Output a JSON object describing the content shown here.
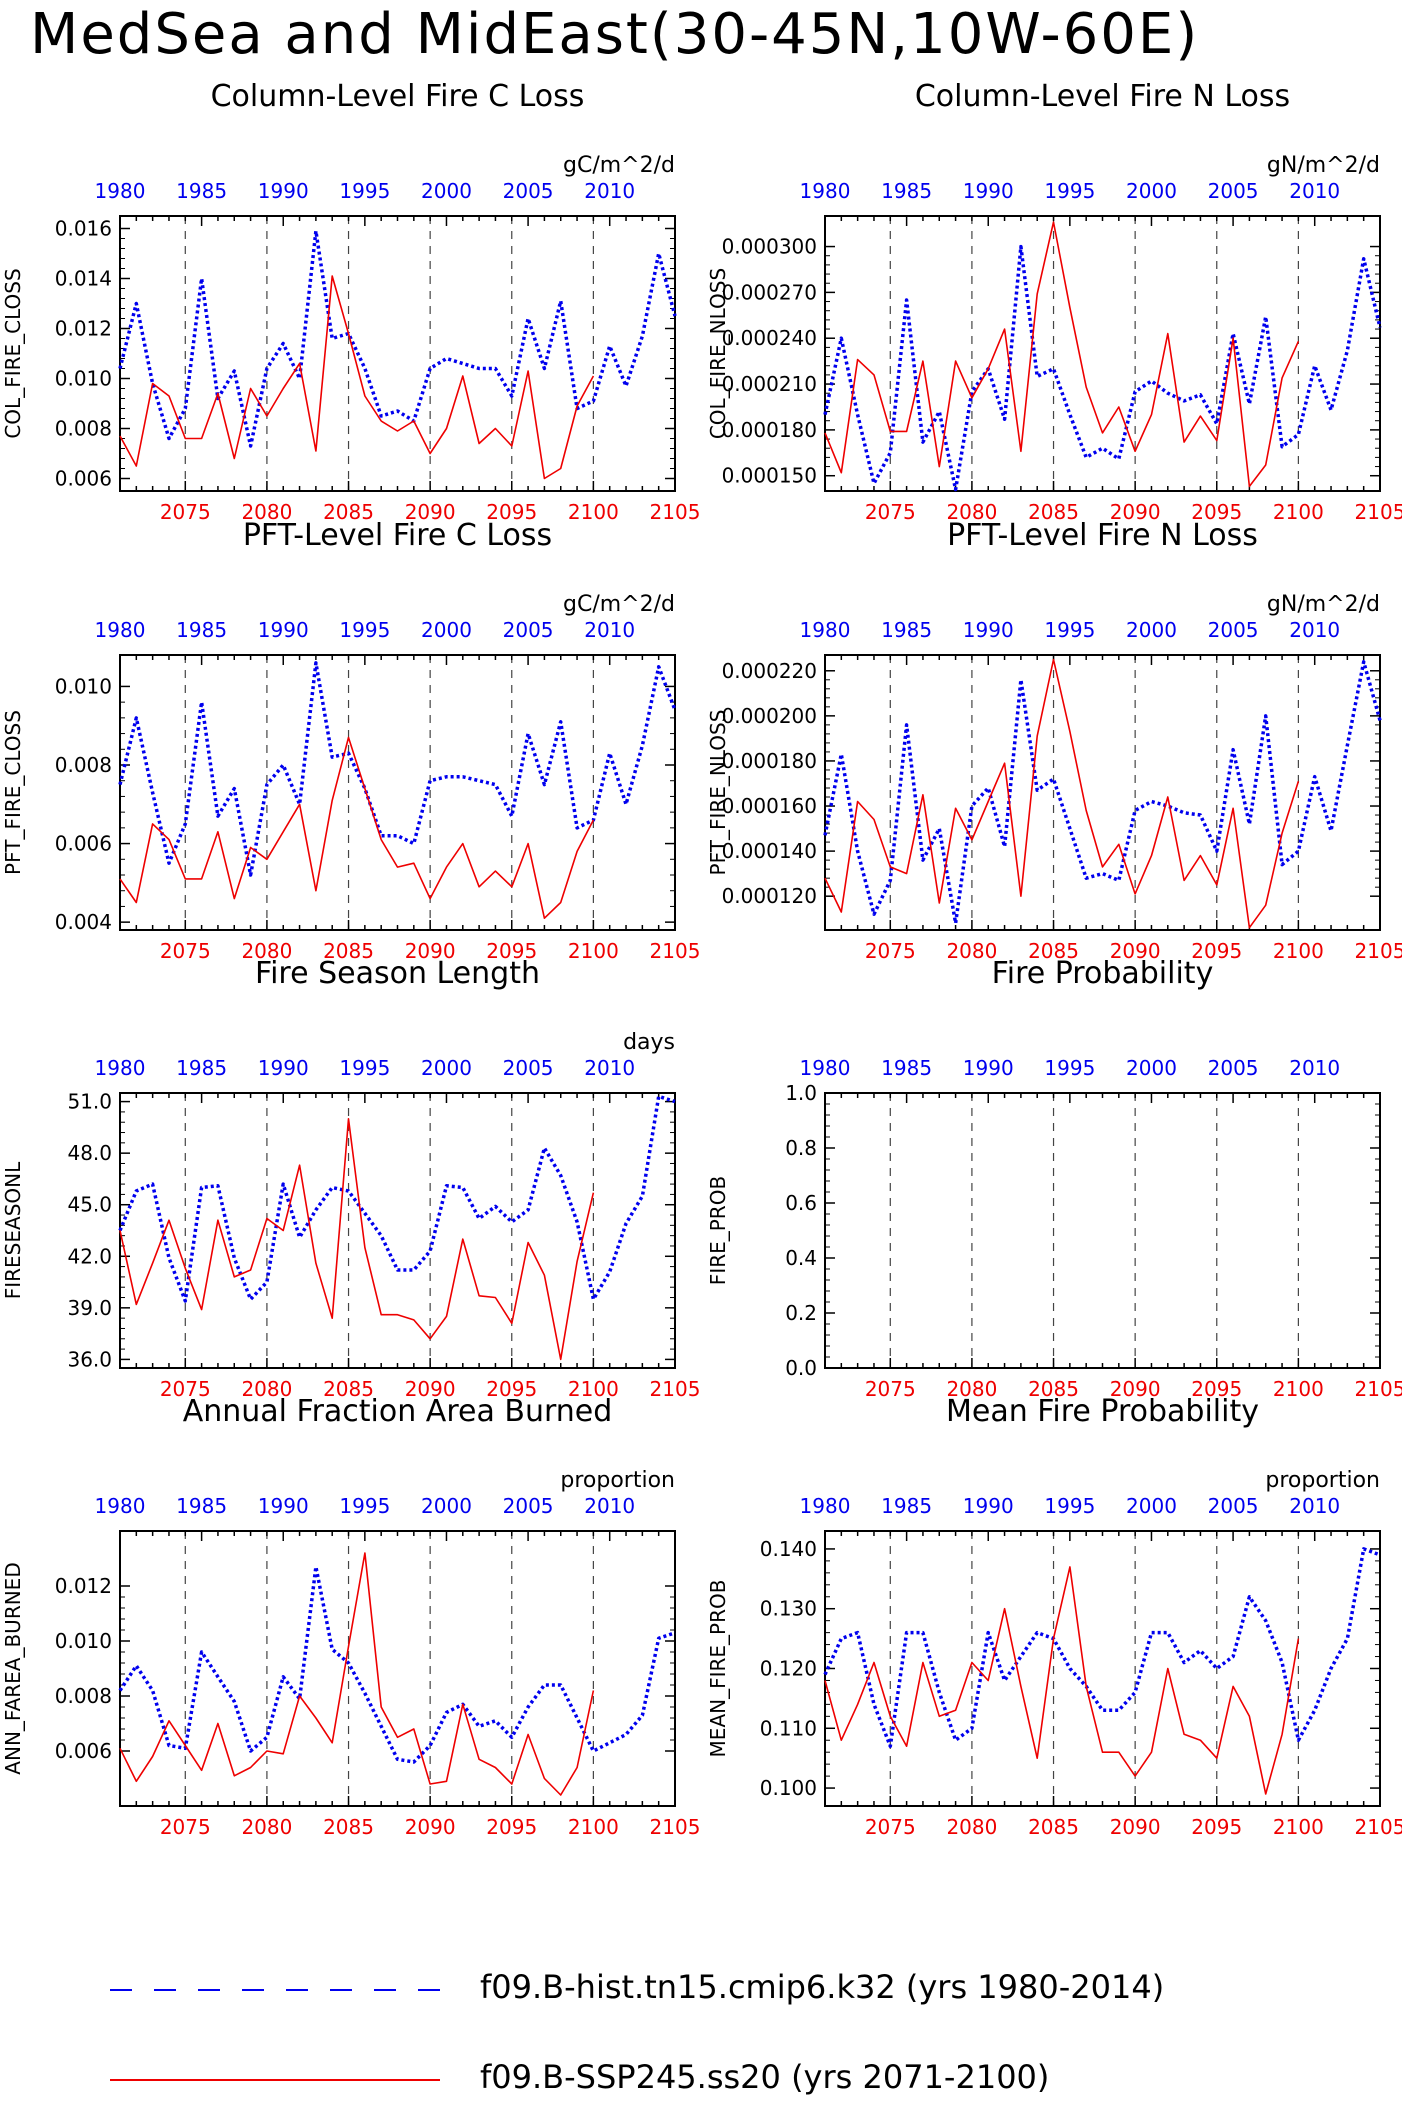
{
  "title": "MedSea and MidEast(30-45N,10W-60E)",
  "colors": {
    "hist": "#0000ee",
    "ssp": "#ee0000",
    "axis": "#000000"
  },
  "top_axis_ticks": [
    "1980",
    "1985",
    "1990",
    "1995",
    "2000",
    "2005",
    "2010"
  ],
  "bottom_axis_ticks": [
    "2075",
    "2080",
    "2085",
    "2090",
    "2095",
    "2100",
    "2105"
  ],
  "legend": {
    "hist": "f09.B-hist.tn15.cmip6.k32 (yrs 1980-2014)",
    "ssp": "f09.B-SSP245.ss20 (yrs 2071-2100)"
  },
  "chart_data": [
    {
      "type": "line",
      "title": "Column-Level Fire C Loss",
      "units": "gC/m^2/d",
      "ylabel": "COL_FIRE_CLOSS",
      "ylim": [
        0.0055,
        0.0165
      ],
      "yticks": [
        "0.006",
        "0.008",
        "0.010",
        "0.012",
        "0.014",
        "0.016"
      ],
      "series": [
        {
          "name": "f09.B-hist.tn15.cmip6.k32 (yrs 1980-2014)",
          "x_start": 1980,
          "values": [
            0.0104,
            0.013,
            0.0098,
            0.0076,
            0.0088,
            0.014,
            0.0092,
            0.0103,
            0.0073,
            0.0104,
            0.0114,
            0.01,
            0.0159,
            0.0116,
            0.0118,
            0.0104,
            0.0085,
            0.0087,
            0.0083,
            0.0104,
            0.0108,
            0.0106,
            0.0104,
            0.0104,
            0.0093,
            0.0124,
            0.0104,
            0.0131,
            0.0088,
            0.0091,
            0.0113,
            0.0097,
            0.0117,
            0.015,
            0.0125
          ]
        },
        {
          "name": "f09.B-SSP245.ss20 (yrs 2071-2100)",
          "x_start": 2071,
          "values": [
            0.0077,
            0.0065,
            0.0098,
            0.0093,
            0.0076,
            0.0076,
            0.0094,
            0.0068,
            0.0096,
            0.0085,
            0.0096,
            0.0106,
            0.0071,
            0.0141,
            0.0118,
            0.0093,
            0.0083,
            0.0079,
            0.0083,
            0.007,
            0.008,
            0.0101,
            0.0074,
            0.008,
            0.0073,
            0.0103,
            0.006,
            0.0064,
            0.0089,
            0.0101
          ]
        }
      ]
    },
    {
      "type": "line",
      "title": "Column-Level Fire N Loss",
      "units": "gN/m^2/d",
      "ylabel": "COL_FIRE_NLOSS",
      "ylim": [
        0.00014,
        0.00032
      ],
      "yticks": [
        "0.000150",
        "0.000180",
        "0.000210",
        "0.000240",
        "0.000270",
        "0.000300"
      ],
      "series": [
        {
          "name": "f09.B-hist.tn15.cmip6.k32 (yrs 1980-2014)",
          "x_start": 1980,
          "values": [
            0.00019,
            0.00024,
            0.00019,
            0.000145,
            0.000165,
            0.000265,
            0.000172,
            0.000192,
            0.000141,
            0.000205,
            0.00022,
            0.000187,
            0.0003,
            0.000215,
            0.00022,
            0.00019,
            0.000162,
            0.000168,
            0.000161,
            0.000205,
            0.000212,
            0.000204,
            0.000199,
            0.000203,
            0.000184,
            0.000243,
            0.000197,
            0.000254,
            0.000169,
            0.000177,
            0.000222,
            0.000193,
            0.000232,
            0.000292,
            0.000247
          ]
        },
        {
          "name": "f09.B-SSP245.ss20 (yrs 2071-2100)",
          "x_start": 2071,
          "values": [
            0.000178,
            0.000152,
            0.000226,
            0.000216,
            0.000179,
            0.000179,
            0.000225,
            0.000156,
            0.000225,
            0.000201,
            0.00022,
            0.000246,
            0.000166,
            0.000269,
            0.000316,
            0.00026,
            0.000208,
            0.000178,
            0.000195,
            0.000166,
            0.00019,
            0.000243,
            0.000172,
            0.000189,
            0.000173,
            0.00024,
            0.000143,
            0.000157,
            0.000214,
            0.000238
          ]
        }
      ]
    },
    {
      "type": "line",
      "title": "PFT-Level Fire C Loss",
      "units": "gC/m^2/d",
      "ylabel": "PFT_FIRE_CLOSS",
      "ylim": [
        0.0038,
        0.0108
      ],
      "yticks": [
        "0.004",
        "0.006",
        "0.008",
        "0.010"
      ],
      "series": [
        {
          "name": "f09.B-hist.tn15.cmip6.k32 (yrs 1980-2014)",
          "x_start": 1980,
          "values": [
            0.0075,
            0.0092,
            0.0073,
            0.0055,
            0.0065,
            0.0096,
            0.0067,
            0.0074,
            0.0052,
            0.0075,
            0.008,
            0.007,
            0.0106,
            0.0082,
            0.0083,
            0.0074,
            0.0062,
            0.0062,
            0.006,
            0.0076,
            0.0077,
            0.0077,
            0.0076,
            0.0075,
            0.0067,
            0.0088,
            0.0075,
            0.0091,
            0.0064,
            0.0066,
            0.0083,
            0.007,
            0.0085,
            0.0105,
            0.0094
          ]
        },
        {
          "name": "f09.B-SSP245.ss20 (yrs 2071-2100)",
          "x_start": 2071,
          "values": [
            0.0051,
            0.0045,
            0.0065,
            0.0061,
            0.0051,
            0.0051,
            0.0063,
            0.0046,
            0.0059,
            0.0056,
            0.0063,
            0.007,
            0.0048,
            0.0071,
            0.0087,
            0.0074,
            0.0061,
            0.0054,
            0.0055,
            0.0046,
            0.0054,
            0.006,
            0.0049,
            0.0053,
            0.0049,
            0.006,
            0.0041,
            0.0045,
            0.0058,
            0.0066
          ]
        }
      ]
    },
    {
      "type": "line",
      "title": "PFT-Level Fire N Loss",
      "units": "gN/m^2/d",
      "ylabel": "PFT_FIRE_NLOSS",
      "ylim": [
        0.000105,
        0.000227
      ],
      "yticks": [
        "0.000120",
        "0.000140",
        "0.000160",
        "0.000180",
        "0.000200",
        "0.000220"
      ],
      "series": [
        {
          "name": "f09.B-hist.tn15.cmip6.k32 (yrs 1980-2014)",
          "x_start": 1980,
          "values": [
            0.000147,
            0.000183,
            0.00014,
            0.000112,
            0.000127,
            0.000196,
            0.000136,
            0.00015,
            0.000108,
            0.00016,
            0.000168,
            0.000142,
            0.000216,
            0.000167,
            0.000172,
            0.00015,
            0.000128,
            0.00013,
            0.000127,
            0.000158,
            0.000162,
            0.00016,
            0.000157,
            0.000156,
            0.00014,
            0.000185,
            0.000152,
            0.0002,
            0.000134,
            0.00014,
            0.000173,
            0.000149,
            0.000187,
            0.000224,
            0.000198
          ]
        },
        {
          "name": "f09.B-SSP245.ss20 (yrs 2071-2100)",
          "x_start": 2071,
          "values": [
            0.000128,
            0.000113,
            0.000162,
            0.000154,
            0.000133,
            0.00013,
            0.000165,
            0.000117,
            0.000159,
            0.000145,
            0.000162,
            0.000179,
            0.00012,
            0.000191,
            0.000225,
            0.000193,
            0.000158,
            0.000133,
            0.000143,
            0.000121,
            0.000138,
            0.000164,
            0.000127,
            0.000138,
            0.000125,
            0.000159,
            0.000106,
            0.000116,
            0.000148,
            0.000171
          ]
        }
      ]
    },
    {
      "type": "line",
      "title": "Fire Season Length",
      "units": "days",
      "ylabel": "FIRESEASONL",
      "ylim": [
        35.5,
        51.5
      ],
      "yticks": [
        "36.0",
        "39.0",
        "42.0",
        "45.0",
        "48.0",
        "51.0"
      ],
      "series": [
        {
          "name": "f09.B-hist.tn15.cmip6.k32 (yrs 1980-2014)",
          "x_start": 1980,
          "values": [
            43.5,
            45.8,
            46.2,
            41.9,
            39.4,
            46.0,
            46.1,
            41.9,
            39.5,
            40.5,
            46.2,
            43.1,
            44.7,
            46.0,
            45.8,
            44.5,
            43.2,
            41.2,
            41.2,
            42.3,
            46.1,
            46.0,
            44.2,
            44.9,
            44.0,
            44.7,
            48.3,
            46.7,
            44.0,
            39.5,
            41.1,
            43.9,
            45.5,
            51.3,
            51.0
          ]
        },
        {
          "name": "f09.B-SSP245.ss20 (yrs 2071-2100)",
          "x_start": 2071,
          "values": [
            43.5,
            39.2,
            41.6,
            44.1,
            41.3,
            38.9,
            44.1,
            40.8,
            41.2,
            44.2,
            43.5,
            47.3,
            41.6,
            38.4,
            50.0,
            42.5,
            38.6,
            38.6,
            38.3,
            37.2,
            38.5,
            43.0,
            39.7,
            39.6,
            38.1,
            42.8,
            40.9,
            36.0,
            41.7,
            45.7
          ]
        }
      ]
    },
    {
      "type": "line",
      "title": "Fire Probability",
      "units": "",
      "ylabel": "FIRE_PROB",
      "ylim": [
        0.0,
        1.0
      ],
      "yticks": [
        "0.0",
        "0.2",
        "0.4",
        "0.6",
        "0.8",
        "1.0"
      ],
      "series": []
    },
    {
      "type": "line",
      "title": "Annual Fraction Area Burned",
      "units": "proportion",
      "ylabel": "ANN_FAREA_BURNED",
      "ylim": [
        0.004,
        0.014
      ],
      "yticks": [
        "0.006",
        "0.008",
        "0.010",
        "0.012"
      ],
      "series": [
        {
          "name": "f09.B-hist.tn15.cmip6.k32 (yrs 1980-2014)",
          "x_start": 1980,
          "values": [
            0.0082,
            0.0091,
            0.0082,
            0.0062,
            0.0061,
            0.0096,
            0.0087,
            0.0078,
            0.006,
            0.0065,
            0.0087,
            0.0079,
            0.0127,
            0.0097,
            0.0092,
            0.0081,
            0.0069,
            0.0057,
            0.0056,
            0.0062,
            0.0074,
            0.0077,
            0.0069,
            0.0071,
            0.0065,
            0.0076,
            0.0084,
            0.0084,
            0.0072,
            0.006,
            0.0063,
            0.0066,
            0.0073,
            0.0101,
            0.0103
          ]
        },
        {
          "name": "f09.B-SSP245.ss20 (yrs 2071-2100)",
          "x_start": 2071,
          "values": [
            0.0061,
            0.0049,
            0.0058,
            0.0071,
            0.0062,
            0.0053,
            0.007,
            0.0051,
            0.0054,
            0.006,
            0.0059,
            0.008,
            0.0072,
            0.0063,
            0.0098,
            0.0132,
            0.0076,
            0.0065,
            0.0068,
            0.0048,
            0.0049,
            0.0077,
            0.0057,
            0.0054,
            0.0048,
            0.0066,
            0.005,
            0.0044,
            0.0054,
            0.0082
          ]
        }
      ]
    },
    {
      "type": "line",
      "title": "Mean Fire Probability",
      "units": "proportion",
      "ylabel": "MEAN_FIRE_PROB",
      "ylim": [
        0.097,
        0.143
      ],
      "yticks": [
        "0.100",
        "0.110",
        "0.120",
        "0.130",
        "0.140"
      ],
      "series": [
        {
          "name": "f09.B-hist.tn15.cmip6.k32 (yrs 1980-2014)",
          "x_start": 1980,
          "values": [
            0.119,
            0.125,
            0.126,
            0.114,
            0.107,
            0.126,
            0.126,
            0.116,
            0.108,
            0.11,
            0.126,
            0.118,
            0.122,
            0.126,
            0.125,
            0.12,
            0.117,
            0.113,
            0.113,
            0.116,
            0.126,
            0.126,
            0.121,
            0.123,
            0.12,
            0.122,
            0.132,
            0.128,
            0.121,
            0.108,
            0.113,
            0.12,
            0.125,
            0.14,
            0.139
          ]
        },
        {
          "name": "f09.B-SSP245.ss20 (yrs 2071-2100)",
          "x_start": 2071,
          "values": [
            0.118,
            0.108,
            0.114,
            0.121,
            0.112,
            0.107,
            0.121,
            0.112,
            0.113,
            0.121,
            0.118,
            0.13,
            0.117,
            0.105,
            0.125,
            0.137,
            0.117,
            0.106,
            0.106,
            0.102,
            0.106,
            0.12,
            0.109,
            0.108,
            0.105,
            0.117,
            0.112,
            0.099,
            0.109,
            0.125
          ]
        }
      ]
    }
  ]
}
